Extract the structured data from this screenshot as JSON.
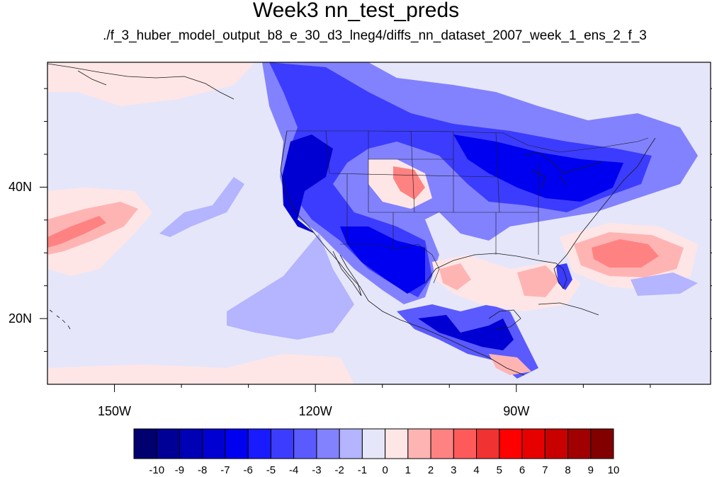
{
  "title": "Week3 nn_test_preds",
  "subtitle": "./f_3_huber_model_output_b8_e_30_d3_lneg4/diffs_nn_dataset_2007_week_1_ens_2_f_3",
  "map": {
    "lon_range": [
      -160,
      -61
    ],
    "lat_range": [
      10,
      59
    ],
    "lat_labels": [
      {
        "text": "40N",
        "lat": 40
      },
      {
        "text": "20N",
        "lat": 20
      }
    ],
    "lon_labels": [
      {
        "text": "150W",
        "lon": -150
      },
      {
        "text": "120W",
        "lon": -120
      },
      {
        "text": "90W",
        "lon": -90
      }
    ],
    "background_value": -1
  },
  "colorbar": {
    "labels": [
      "-10",
      "-9",
      "-8",
      "-7",
      "-6",
      "-5",
      "-4",
      "-3",
      "-2",
      "-1",
      "0",
      "1",
      "2",
      "3",
      "4",
      "5",
      "6",
      "7",
      "8",
      "9",
      "10"
    ],
    "colors": [
      "#00006e",
      "#000096",
      "#0000b4",
      "#0000d2",
      "#0000f0",
      "#1a1aff",
      "#3c3cff",
      "#5a5aff",
      "#8282ff",
      "#b4b4ff",
      "#e6e6fa",
      "#ffe6e6",
      "#ffb4b4",
      "#ff8282",
      "#ff5a5a",
      "#f03232",
      "#ff0000",
      "#e60000",
      "#c80000",
      "#a00000",
      "#820000"
    ]
  }
}
